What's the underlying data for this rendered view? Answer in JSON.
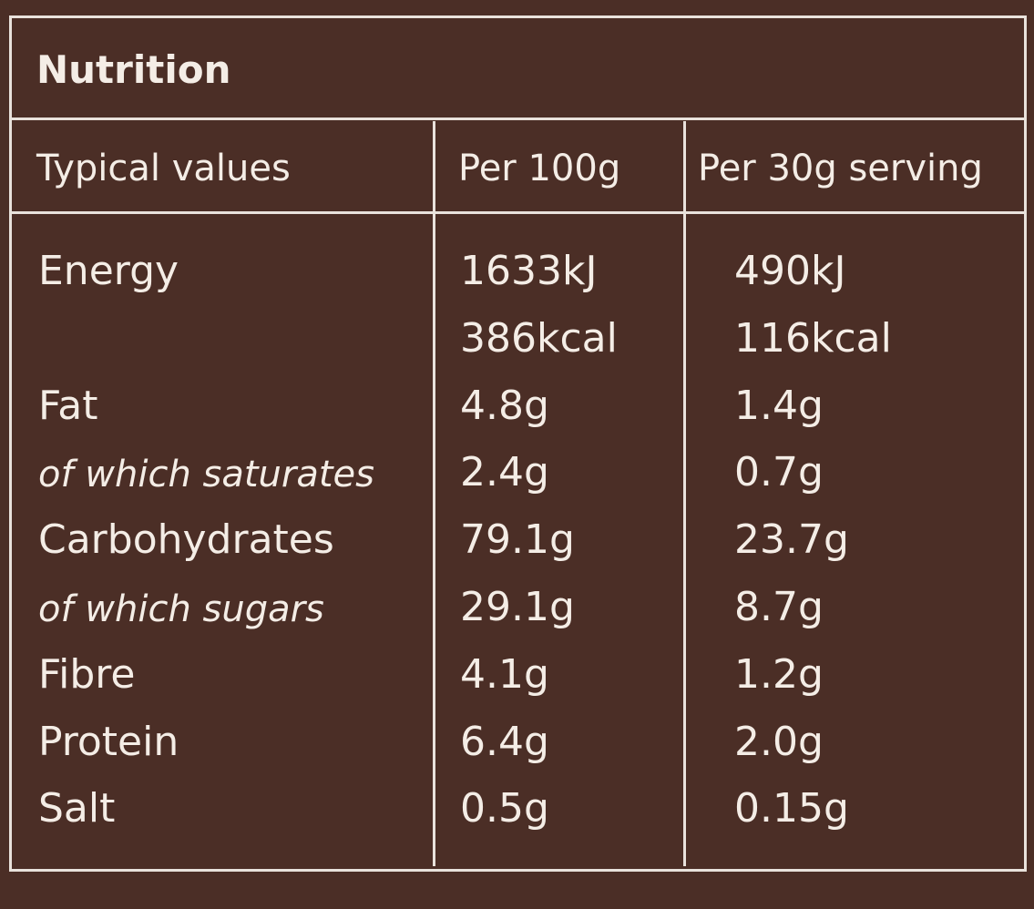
{
  "title": "Nutrition",
  "table": {
    "headers": [
      "Typical values",
      "Per 100g",
      "Per 30g serving"
    ],
    "rows": [
      {
        "label": "Energy",
        "per_100g": [
          "1633kJ",
          "386kcal"
        ],
        "per_serving": [
          "490kJ",
          "116kcal"
        ]
      },
      {
        "label": "Fat",
        "per_100g": [
          "4.8g"
        ],
        "per_serving": [
          "1.4g"
        ]
      },
      {
        "label": "of which saturates",
        "per_100g": [
          "2.4g"
        ],
        "per_serving": [
          "0.7g"
        ]
      },
      {
        "label": "Carbohydrates",
        "per_100g": [
          "79.1g"
        ],
        "per_serving": [
          "23.7g"
        ]
      },
      {
        "label": "of which sugars",
        "per_100g": [
          "29.1g"
        ],
        "per_serving": [
          "8.7g"
        ]
      },
      {
        "label": "Fibre",
        "per_100g": [
          "4.1g"
        ],
        "per_serving": [
          "1.2g"
        ]
      },
      {
        "label": "Protein",
        "per_100g": [
          "6.4g"
        ],
        "per_serving": [
          "2.0g"
        ]
      },
      {
        "label": "Salt",
        "per_100g": [
          "0.5g"
        ],
        "per_serving": [
          "0.15g"
        ]
      }
    ]
  }
}
